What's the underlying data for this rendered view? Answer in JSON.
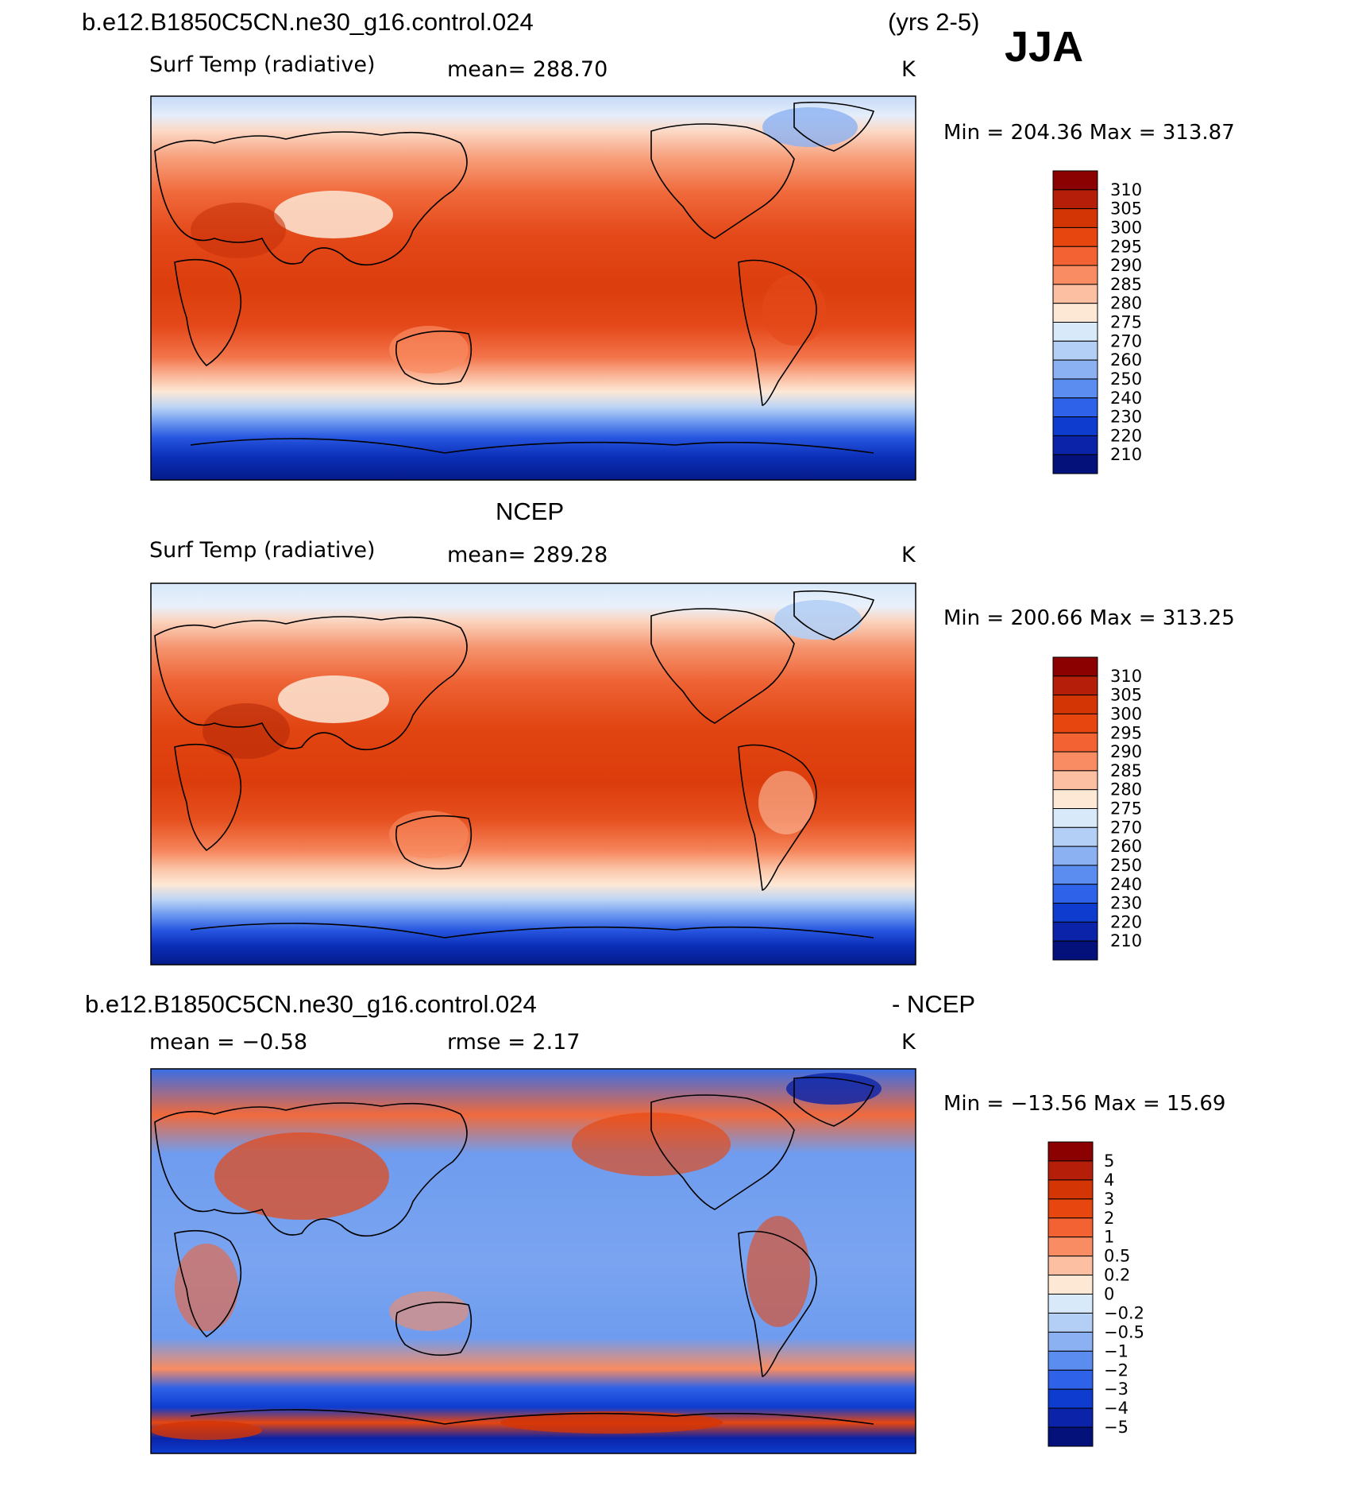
{
  "season": "JJA",
  "years": "(yrs 2-5)",
  "panels": [
    {
      "header_left": "b.e12.B1850C5CN.ne30_g16.control.024",
      "header_right": "",
      "left_text": "Surf Temp (radiative)",
      "center_text": "mean=  288.70",
      "unit": "K",
      "minmax": "Min  =  204.36  Max  =  313.87",
      "colorbar": {
        "labels": [
          "310",
          "305",
          "300",
          "295",
          "290",
          "285",
          "280",
          "275",
          "270",
          "260",
          "250",
          "240",
          "230",
          "220",
          "210"
        ],
        "colors": [
          "#8b0000",
          "#b51f0a",
          "#d43505",
          "#e8460f",
          "#f26233",
          "#f98c62",
          "#fcbfa1",
          "#fde8d6",
          "#d8e9fa",
          "#b4cff5",
          "#8cb1f2",
          "#5b8cf0",
          "#2e62e8",
          "#0d3ccf",
          "#0a23a8",
          "#04117a"
        ]
      }
    },
    {
      "header_left": "",
      "header_center": "NCEP",
      "left_text": "Surf Temp (radiative)",
      "center_text": "mean=  289.28",
      "unit": "K",
      "minmax": "Min  =  200.66  Max  =  313.25",
      "colorbar": {
        "labels": [
          "310",
          "305",
          "300",
          "295",
          "290",
          "285",
          "280",
          "275",
          "270",
          "260",
          "250",
          "240",
          "230",
          "220",
          "210"
        ],
        "colors": [
          "#8b0000",
          "#b51f0a",
          "#d43505",
          "#e8460f",
          "#f26233",
          "#f98c62",
          "#fcbfa1",
          "#fde8d6",
          "#d8e9fa",
          "#b4cff5",
          "#8cb1f2",
          "#5b8cf0",
          "#2e62e8",
          "#0d3ccf",
          "#0a23a8",
          "#04117a"
        ]
      }
    },
    {
      "header_left": "b.e12.B1850C5CN.ne30_g16.control.024",
      "header_right": "- NCEP",
      "left_text": "mean =    −0.58",
      "center_text": "rmse =     2.17",
      "unit": "K",
      "minmax": "Min  =  −13.56  Max  =    15.69",
      "colorbar": {
        "labels": [
          "5",
          "4",
          "3",
          "2",
          "1",
          "0.5",
          "0.2",
          "0",
          "−0.2",
          "−0.5",
          "−1",
          "−2",
          "−3",
          "−4",
          "−5"
        ],
        "colors": [
          "#8b0000",
          "#b51f0a",
          "#d43505",
          "#e8460f",
          "#f26233",
          "#f98c62",
          "#fcbfa1",
          "#fde8d6",
          "#d8e9fa",
          "#b4cff5",
          "#8cb1f2",
          "#5b8cf0",
          "#2e62e8",
          "#0d3ccf",
          "#0a23a8",
          "#04117a"
        ]
      }
    }
  ]
}
